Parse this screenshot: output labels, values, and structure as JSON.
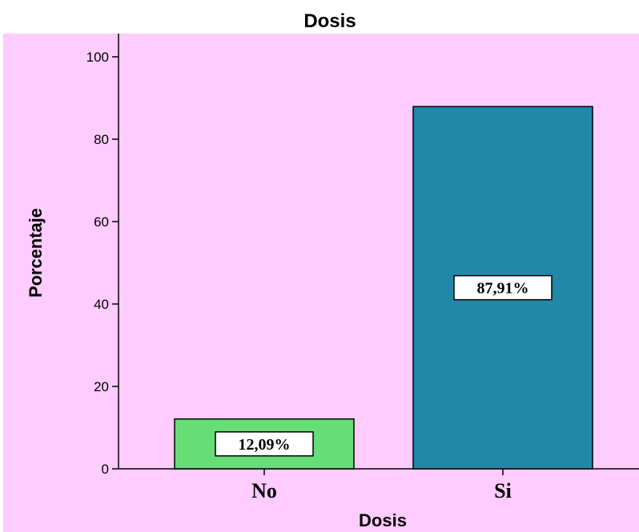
{
  "chart_data": {
    "type": "bar",
    "title": "Dosis",
    "xlabel": "Dosis",
    "ylabel": "Porcentaje",
    "categories": [
      "No",
      "Si"
    ],
    "values": [
      12.09,
      87.91
    ],
    "data_labels": [
      "12,09%",
      "87,91%"
    ],
    "yticks": [
      "0",
      "20",
      "40",
      "60",
      "80",
      "100"
    ],
    "ylim": [
      0,
      105
    ],
    "grid": false,
    "legend": "none",
    "colors": {
      "plot_background": "#ffccff",
      "bars": [
        "#66dd77",
        "#2288a8"
      ],
      "bar_outline": "#000000",
      "label_box": "#ffffff"
    }
  }
}
